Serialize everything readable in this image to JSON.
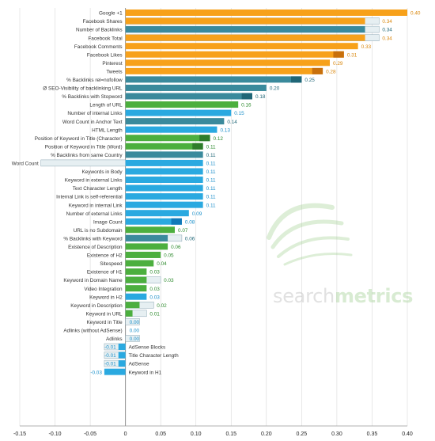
{
  "brand": {
    "watermark_part1": "search",
    "watermark_part2": "metrics"
  },
  "colors": {
    "orange": "#f7a11a",
    "orange_dark": "#c8700c",
    "teal": "#3a8a9c",
    "teal_dark": "#1f6677",
    "green": "#4caf3e",
    "green_dark": "#2e7d2a",
    "blue": "#2aa9e0",
    "blue_dark": "#1279b8",
    "neutral": "#e6eff2",
    "neutral_border": "#8aa6b3",
    "grid": "#d9d9d9"
  },
  "chart_data": {
    "type": "bar",
    "orientation": "horizontal",
    "xlim": [
      -0.15,
      0.4
    ],
    "xticks": [
      "-0.15",
      "-0.10",
      "-0.05",
      "0",
      "0.05",
      "0.10",
      "0.15",
      "0.20",
      "0.25",
      "0.30",
      "0.35",
      "0.40"
    ],
    "grid": true,
    "rows": [
      {
        "label": "Google +1",
        "value": 0.4,
        "value_label": "0.40",
        "color": "orange"
      },
      {
        "label": "Facebook Shares",
        "value": 0.34,
        "value_label": "0.34",
        "color": "orange",
        "trend": "down"
      },
      {
        "label": "Number of Backlinks",
        "value": 0.34,
        "value_label": "0.34",
        "color": "teal",
        "trend": "down"
      },
      {
        "label": "Facebook Total",
        "value": 0.34,
        "value_label": "0.34",
        "color": "orange",
        "trend": "down"
      },
      {
        "label": "Facebook Comments",
        "value": 0.33,
        "value_label": "0.33",
        "color": "orange"
      },
      {
        "label": "Facebook Likes",
        "value": 0.31,
        "value_label": "0.31",
        "color": "orange",
        "trend": "up"
      },
      {
        "label": "Pinterest",
        "value": 0.29,
        "value_label": "0.29",
        "color": "orange"
      },
      {
        "label": "Tweets",
        "value": 0.28,
        "value_label": "0.28",
        "color": "orange",
        "trend": "up"
      },
      {
        "label": "% Backlinks rel=nofollow",
        "value": 0.25,
        "value_label": "0.25",
        "color": "teal",
        "trend": "up"
      },
      {
        "label": "Ø SEO-Visibility of backlinking URL",
        "value": 0.2,
        "value_label": "0.20",
        "color": "teal"
      },
      {
        "label": "% Backlinks with Stopword",
        "value": 0.18,
        "value_label": "0.18",
        "color": "teal",
        "trend": "up"
      },
      {
        "label": "Length of URL",
        "value": 0.16,
        "value_label": "0.16",
        "color": "green"
      },
      {
        "label": "Number of internal Links",
        "value": 0.15,
        "value_label": "0.15",
        "color": "blue"
      },
      {
        "label": "Word Count in Anchor Text",
        "value": 0.14,
        "value_label": "0.14",
        "color": "teal"
      },
      {
        "label": "HTML Length",
        "value": 0.13,
        "value_label": "0.13",
        "color": "blue"
      },
      {
        "label": "Position of Keyword in Title (Character)",
        "value": 0.12,
        "value_label": "0.12",
        "color": "green",
        "trend": "up"
      },
      {
        "label": "Position of Keyword in Title (Word)",
        "value": 0.11,
        "value_label": "0.11",
        "color": "green",
        "trend": "up"
      },
      {
        "label": "% Backlinks from same Country",
        "value": 0.11,
        "value_label": "0.11",
        "color": "teal"
      },
      {
        "label": "Word Count",
        "value": 0.11,
        "value_label": "0.11",
        "color": "blue",
        "trend": "up",
        "previous": -0.12
      },
      {
        "label": "Keywords in Body",
        "value": 0.11,
        "value_label": "0.11",
        "color": "blue"
      },
      {
        "label": "Keyword in external Links",
        "value": 0.11,
        "value_label": "0.11",
        "color": "blue"
      },
      {
        "label": "Text Character Length",
        "value": 0.11,
        "value_label": "0.11",
        "color": "blue"
      },
      {
        "label": "Internal Link is self-referential",
        "value": 0.11,
        "value_label": "0.11",
        "color": "blue"
      },
      {
        "label": "Keyword in internal Link",
        "value": 0.11,
        "value_label": "0.11",
        "color": "blue"
      },
      {
        "label": "Number of external Links",
        "value": 0.09,
        "value_label": "0.09",
        "color": "blue"
      },
      {
        "label": "Image Count",
        "value": 0.08,
        "value_label": "0.08",
        "color": "blue",
        "trend": "up"
      },
      {
        "label": "URL is no Subdomain",
        "value": 0.07,
        "value_label": "0.07",
        "color": "green"
      },
      {
        "label": "% Backlinks with Keyword",
        "value": 0.06,
        "value_label": "0.06",
        "color": "teal",
        "trend": "down"
      },
      {
        "label": "Existence of Description",
        "value": 0.06,
        "value_label": "0.06",
        "color": "green"
      },
      {
        "label": "Existence of H2",
        "value": 0.05,
        "value_label": "0.05",
        "color": "green"
      },
      {
        "label": "Sitespeed",
        "value": 0.04,
        "value_label": "0.04",
        "color": "green"
      },
      {
        "label": "Existence of H1",
        "value": 0.03,
        "value_label": "0.03",
        "color": "green"
      },
      {
        "label": "Keyword in Domain Name",
        "value": 0.03,
        "value_label": "0.03",
        "color": "green",
        "trend": "down"
      },
      {
        "label": "Video Integration",
        "value": 0.03,
        "value_label": "0.03",
        "color": "green"
      },
      {
        "label": "Keyword in H2",
        "value": 0.03,
        "value_label": "0.03",
        "color": "blue"
      },
      {
        "label": "Keyword in Description",
        "value": 0.02,
        "value_label": "0.02",
        "color": "green",
        "trend": "down"
      },
      {
        "label": "Keyword in URL",
        "value": 0.01,
        "value_label": "0.01",
        "color": "green",
        "trend": "down"
      },
      {
        "label": "Keyword in Title",
        "value": 0.0,
        "value_label": "0.00",
        "color": "blue",
        "trend": "down"
      },
      {
        "label": "Adlinks (without AdSense)",
        "value": 0.0,
        "value_label": "0.00",
        "color": "blue"
      },
      {
        "label": "Adlinks",
        "value": 0.0,
        "value_label": "0.00",
        "color": "blue",
        "trend": "down"
      },
      {
        "label": "AdSense Blocks",
        "value": -0.01,
        "value_label": "-0.01",
        "color": "blue",
        "trend": "down"
      },
      {
        "label": "Title Character Length",
        "value": -0.01,
        "value_label": "-0.01",
        "color": "blue",
        "trend": "down"
      },
      {
        "label": "AdSense",
        "value": -0.01,
        "value_label": "-0.01",
        "color": "blue",
        "trend": "down"
      },
      {
        "label": "Keyword in H1",
        "value": -0.03,
        "value_label": "-0.03",
        "color": "blue"
      }
    ]
  }
}
